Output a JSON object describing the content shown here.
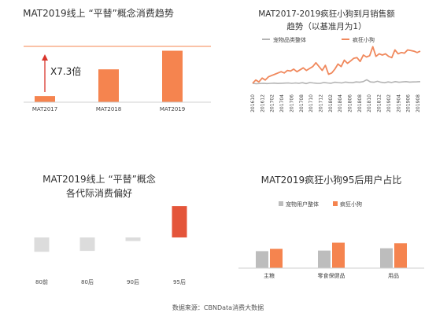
{
  "colors": {
    "orange": "#F5844F",
    "orange_line": "#F0885C",
    "dark_orange": "#E4553A",
    "gray": "#BDBDBD",
    "light_gray": "#DCDCDC",
    "gray_line": "#B4B4B4"
  },
  "source": {
    "text": "数据来源：CBNData消费大数据"
  },
  "chart_data": [
    {
      "type": "bar",
      "title": "MAT2019线上 “平替”概念消费趋势",
      "categories": [
        "MAT2017",
        "MAT2018",
        "MAT2019"
      ],
      "values": [
        1,
        5.3,
        8.3
      ],
      "ylim": [
        0,
        9
      ],
      "annotation": "X7.3倍",
      "grid": false
    },
    {
      "type": "line",
      "title_lines": [
        "MAT2017-2019疯狂小狗到月销售额",
        "趋势（以基准月为1）"
      ],
      "legend": "top-right",
      "x_ticks": [
        "201610",
        "201612",
        "201702",
        "201704",
        "201706",
        "201708",
        "201710",
        "201712",
        "201802",
        "201804",
        "201806",
        "201808",
        "201810",
        "201812",
        "201902",
        "201904",
        "201906",
        "201908"
      ],
      "series": [
        {
          "name": "宠物品类整体",
          "values": [
            1.0,
            0.92,
            0.96,
            1.0,
            0.95,
            0.98,
            1.02,
            0.97,
            1.0,
            1.02,
            1.05,
            0.98,
            1.05,
            1.0,
            1.08,
            0.95,
            1.1,
            1.05,
            1.0,
            0.98,
            1.12,
            1.05,
            1.0,
            1.15,
            1.1,
            1.05,
            1.18,
            1.12,
            1.08,
            1.2,
            1.15,
            1.25,
            1.55,
            1.2,
            1.15,
            1.3,
            1.15,
            1.08,
            1.2,
            1.12,
            1.25,
            1.15,
            1.2,
            1.25,
            1.18,
            1.2,
            1.22,
            1.25
          ]
        },
        {
          "name": "疯狂小狗",
          "values": [
            1.0,
            1.5,
            1.2,
            1.8,
            1.5,
            2.0,
            2.2,
            2.4,
            2.6,
            2.8,
            2.6,
            3.0,
            2.9,
            3.2,
            2.8,
            3.1,
            3.4,
            3.0,
            3.3,
            3.6,
            4.2,
            3.6,
            3.0,
            3.8,
            2.4,
            2.6,
            3.2,
            4.0,
            3.6,
            4.6,
            4.1,
            4.5,
            4.9,
            5.0,
            4.4,
            5.4,
            5.1,
            5.3,
            6.7,
            5.2,
            5.6,
            5.4,
            5.6,
            5.2,
            5.0,
            6.2,
            5.6,
            5.8,
            5.7,
            6.2,
            6.1,
            6.0,
            5.8,
            6.0
          ]
        }
      ],
      "ylim": [
        0,
        7
      ]
    },
    {
      "type": "bar",
      "title_lines": [
        "MAT2019线上 “平替”概念",
        "各代际消费偏好"
      ],
      "categories": [
        "80前",
        "80后",
        "90后",
        "95后"
      ],
      "values": [
        -0.32,
        -0.3,
        -0.08,
        0.7
      ],
      "ylim": [
        -0.4,
        0.8
      ],
      "grid": false
    },
    {
      "type": "bar",
      "title": "MAT2019疯狂小狗95后用户占比",
      "legend": "top-center",
      "categories": [
        "主粮",
        "零食保健品",
        "用品"
      ],
      "series": [
        {
          "name": "宠物用户整体",
          "values": [
            0.6,
            0.62,
            0.7
          ]
        },
        {
          "name": "疯狂小狗",
          "values": [
            0.68,
            0.9,
            0.88
          ]
        }
      ],
      "ylim": [
        0,
        1.5
      ],
      "grid": false
    }
  ]
}
